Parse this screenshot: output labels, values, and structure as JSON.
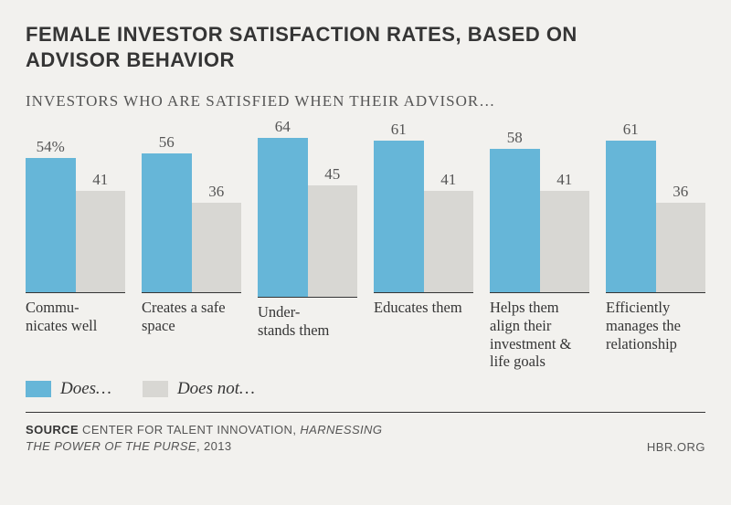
{
  "title_line1": "FEMALE INVESTOR SATISFACTION RATES, BASED ON",
  "title_line2": "ADVISOR BEHAVIOR",
  "title_fontsize": 22,
  "subtitle": "INVESTORS WHO ARE SATISFIED WHEN THEIR ADVISOR…",
  "subtitle_fontsize": 17,
  "chart": {
    "type": "bar",
    "ymax": 70,
    "bar_colors": {
      "does": "#66b6d8",
      "does_not": "#d8d7d3"
    },
    "value_fontsize": 17,
    "value_color": "#555555",
    "category_fontsize": 16.5,
    "category_color": "#353535",
    "baseline_color": "#353535",
    "groups": [
      {
        "label": "Commu-\nnicates well",
        "does": 54,
        "does_display": "54%",
        "does_not": 41,
        "does_not_display": "41"
      },
      {
        "label": "Creates a safe space",
        "does": 56,
        "does_display": "56",
        "does_not": 36,
        "does_not_display": "36"
      },
      {
        "label": "Under-\nstands them",
        "does": 64,
        "does_display": "64",
        "does_not": 45,
        "does_not_display": "45"
      },
      {
        "label": "Educates them",
        "does": 61,
        "does_display": "61",
        "does_not": 41,
        "does_not_display": "41"
      },
      {
        "label": "Helps them align their investment & life goals",
        "does": 58,
        "does_display": "58",
        "does_not": 41,
        "does_not_display": "41"
      },
      {
        "label": "Efficiently manages the relationship",
        "does": 61,
        "does_display": "61",
        "does_not": 36,
        "does_not_display": "36"
      }
    ]
  },
  "legend": {
    "does": "Does…",
    "does_not": "Does not…",
    "fontsize": 19
  },
  "source": {
    "label": "SOURCE",
    "org": "CENTER FOR TALENT INNOVATION,",
    "publication": "HARNESSING THE POWER OF THE PURSE",
    "year": ", 2013"
  },
  "attribution": "HBR.ORG",
  "background_color": "#f2f1ee"
}
